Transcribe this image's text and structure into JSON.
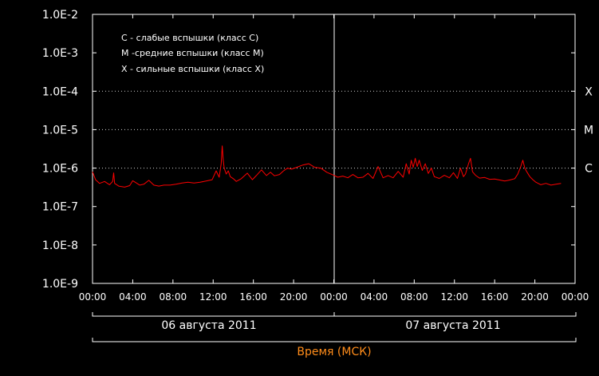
{
  "chart_data": {
    "type": "line",
    "y_scale": "log",
    "ylim": [
      1e-09,
      0.01
    ],
    "y_tick_labels": [
      "1.0E-9",
      "1.0E-8",
      "1.0E-7",
      "1.0E-6",
      "1.0E-5",
      "1.0E-4",
      "1.0E-3",
      "1.0E-2"
    ],
    "x_tick_labels": [
      "00:00",
      "04:00",
      "08:00",
      "12:00",
      "16:00",
      "20:00",
      "00:00",
      "04:00",
      "08:00",
      "12:00",
      "16:00",
      "20:00",
      "00:00"
    ],
    "x_range_hours": [
      0,
      48
    ],
    "thresholds": [
      {
        "label": "X",
        "value": 0.0001
      },
      {
        "label": "M",
        "value": 1e-05
      },
      {
        "label": "C",
        "value": 1e-06
      }
    ],
    "legend": [
      "C - слабые вспышки (класс C)",
      "M -средние вспышки (класс M)",
      "X - сильные вспышки (класс X)"
    ],
    "legend_position": "top-left",
    "days": [
      "06 августа 2011",
      "07 августа 2011"
    ],
    "xlabel": "Время (МСК)",
    "series": [
      {
        "color": "#ff0000",
        "x": [
          0,
          0.3,
          0.7,
          1.2,
          1.7,
          2.0,
          2.1,
          2.2,
          2.6,
          3.2,
          3.7,
          4.0,
          4.3,
          4.7,
          5.1,
          5.6,
          6.1,
          6.6,
          7.1,
          7.7,
          8.3,
          8.9,
          9.5,
          10.1,
          10.7,
          11.3,
          11.9,
          12.3,
          12.6,
          12.8,
          12.9,
          13.0,
          13.1,
          13.3,
          13.5,
          13.7,
          14.0,
          14.3,
          14.8,
          15.4,
          15.9,
          16.3,
          16.8,
          17.3,
          17.7,
          18.1,
          18.6,
          19.0,
          19.4,
          19.8,
          20.3,
          20.9,
          21.5,
          22.1,
          22.7,
          23.3,
          24.0,
          24.4,
          24.9,
          25.4,
          25.9,
          26.4,
          26.9,
          27.4,
          27.9,
          28.4,
          28.9,
          29.4,
          29.9,
          30.4,
          30.9,
          31.2,
          31.5,
          31.7,
          31.9,
          32.1,
          32.3,
          32.5,
          32.8,
          33.1,
          33.4,
          33.7,
          34.0,
          34.5,
          35.0,
          35.5,
          35.9,
          36.3,
          36.6,
          36.9,
          37.1,
          37.4,
          37.6,
          37.8,
          38.1,
          38.5,
          39.0,
          39.5,
          40.0,
          40.5,
          41.0,
          41.5,
          42.0,
          42.3,
          42.6,
          42.8,
          43.0,
          43.2,
          43.5,
          43.8,
          44.1,
          44.6,
          45.1,
          45.6,
          46.1,
          46.6
        ],
        "y": [
          8e-07,
          5e-07,
          4e-07,
          4.5e-07,
          3.7e-07,
          4.5e-07,
          7.5e-07,
          4e-07,
          3.4e-07,
          3.2e-07,
          3.5e-07,
          4.7e-07,
          4.2e-07,
          3.6e-07,
          3.8e-07,
          4.8e-07,
          3.6e-07,
          3.4e-07,
          3.6e-07,
          3.6e-07,
          3.8e-07,
          4.1e-07,
          4.3e-07,
          4.1e-07,
          4.3e-07,
          4.6e-07,
          5e-07,
          8.5e-07,
          5.8e-07,
          1.3e-06,
          3.8e-06,
          1.6e-06,
          1e-06,
          7e-07,
          8.5e-07,
          6e-07,
          5.3e-07,
          4.5e-07,
          5.3e-07,
          7.4e-07,
          5e-07,
          6.4e-07,
          9e-07,
          6.4e-07,
          7.8e-07,
          6.3e-07,
          6.8e-07,
          8.5e-07,
          1e-06,
          9.4e-07,
          1.05e-06,
          1.2e-06,
          1.3e-06,
          1.05e-06,
          1e-06,
          7.8e-07,
          6.5e-07,
          5.8e-07,
          6.2e-07,
          5.6e-07,
          6.8e-07,
          5.6e-07,
          5.8e-07,
          7.3e-07,
          5.4e-07,
          1.1e-06,
          5.6e-07,
          6.4e-07,
          5.6e-07,
          8.2e-07,
          5.8e-07,
          1.3e-06,
          7e-07,
          1.6e-06,
          1.05e-06,
          1.8e-06,
          1.1e-06,
          1.6e-06,
          8.7e-07,
          1.3e-06,
          7.3e-07,
          1e-06,
          6e-07,
          5.4e-07,
          6.5e-07,
          5.6e-07,
          7.6e-07,
          5.4e-07,
          1e-06,
          6e-07,
          7e-07,
          1.3e-06,
          1.8e-06,
          8e-07,
          6.5e-07,
          5.5e-07,
          5.7e-07,
          5.1e-07,
          5.2e-07,
          4.9e-07,
          4.6e-07,
          4.9e-07,
          5.3e-07,
          7e-07,
          1.1e-06,
          1.6e-06,
          1e-06,
          8e-07,
          6e-07,
          5e-07,
          4.3e-07,
          3.7e-07,
          4e-07,
          3.6e-07,
          3.8e-07,
          4e-07
        ]
      }
    ]
  }
}
